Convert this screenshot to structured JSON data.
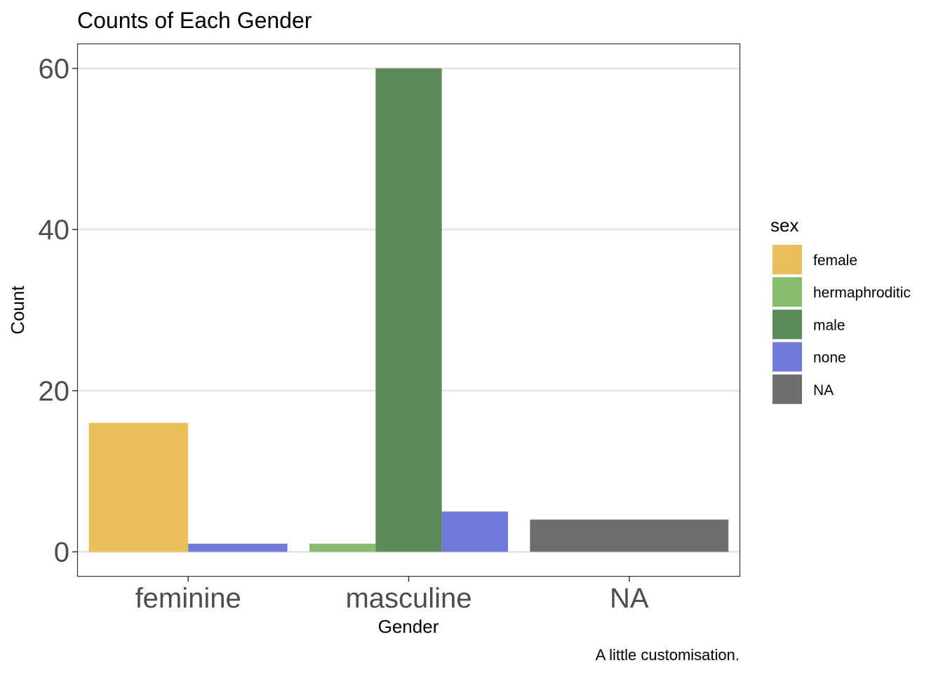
{
  "chart_data": {
    "type": "bar",
    "title": "Counts of Each Gender",
    "xlabel": "Gender",
    "ylabel": "Count",
    "caption": "A little customisation.",
    "categories": [
      "feminine",
      "masculine",
      "NA"
    ],
    "ylim": [
      -3,
      63
    ],
    "yticks": [
      0,
      20,
      40,
      60
    ],
    "grid": true,
    "legend": {
      "title": "sex",
      "placement": "right",
      "entries": [
        {
          "label": "female",
          "color": "#E9BF5A"
        },
        {
          "label": "hermaphroditic",
          "color": "#88BB6E"
        },
        {
          "label": "male",
          "color": "#5C8A56"
        },
        {
          "label": "none",
          "color": "#6F7ADB"
        },
        {
          "label": "NA",
          "color": "#6E6E6E"
        }
      ]
    },
    "bars": [
      {
        "category": "feminine",
        "sex": "female",
        "value": 16,
        "color": "#E9BF5A"
      },
      {
        "category": "feminine",
        "sex": "none",
        "value": 1,
        "color": "#6F7ADB"
      },
      {
        "category": "masculine",
        "sex": "hermaphroditic",
        "value": 1,
        "color": "#88BB6E"
      },
      {
        "category": "masculine",
        "sex": "male",
        "value": 60,
        "color": "#5C8A56"
      },
      {
        "category": "masculine",
        "sex": "none",
        "value": 5,
        "color": "#6F7ADB"
      },
      {
        "category": "NA",
        "sex": "NA",
        "value": 4,
        "color": "#6E6E6E"
      }
    ]
  }
}
